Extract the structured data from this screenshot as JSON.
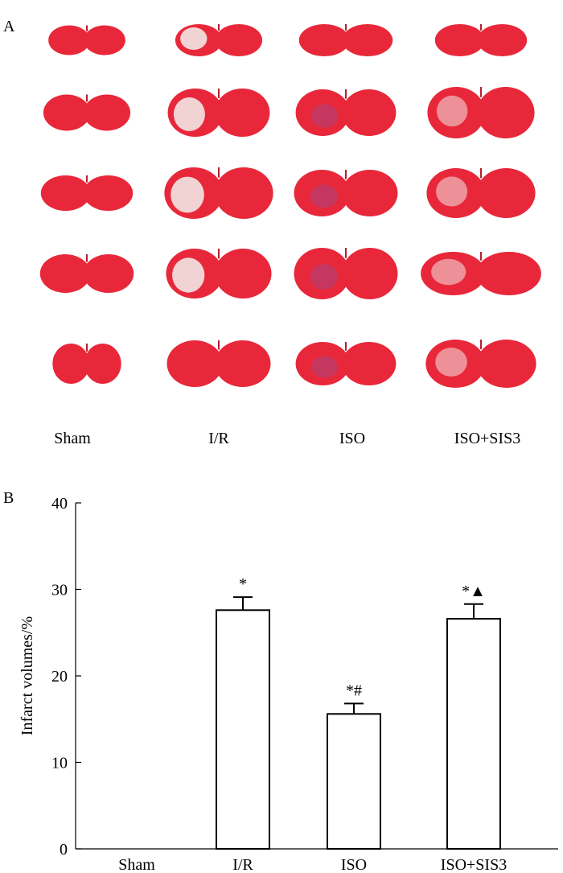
{
  "panel_a": {
    "label": "A",
    "groups": [
      "Sham",
      "I/R",
      "ISO",
      "ISO+SIS3"
    ],
    "rows": 5,
    "stain_color": "#e8283a",
    "infarct_color": "#f3e6e6",
    "bruise_color": "#9b4a8c"
  },
  "panel_b": {
    "label": "B"
  },
  "chart_data": {
    "type": "bar",
    "ylabel": "Infarct volumes/%",
    "xlabel": "",
    "ylim": [
      0,
      40
    ],
    "yticks": [
      0,
      10,
      20,
      30,
      40
    ],
    "categories": [
      "Sham",
      "I/R",
      "ISO",
      "ISO+SIS3"
    ],
    "values": [
      0,
      27.6,
      15.6,
      26.6
    ],
    "errors": [
      0,
      1.5,
      1.2,
      1.7
    ],
    "annotations": [
      "",
      "*",
      "*#",
      "*▲"
    ],
    "bar_fill": "#ffffff",
    "bar_stroke": "#000000"
  }
}
